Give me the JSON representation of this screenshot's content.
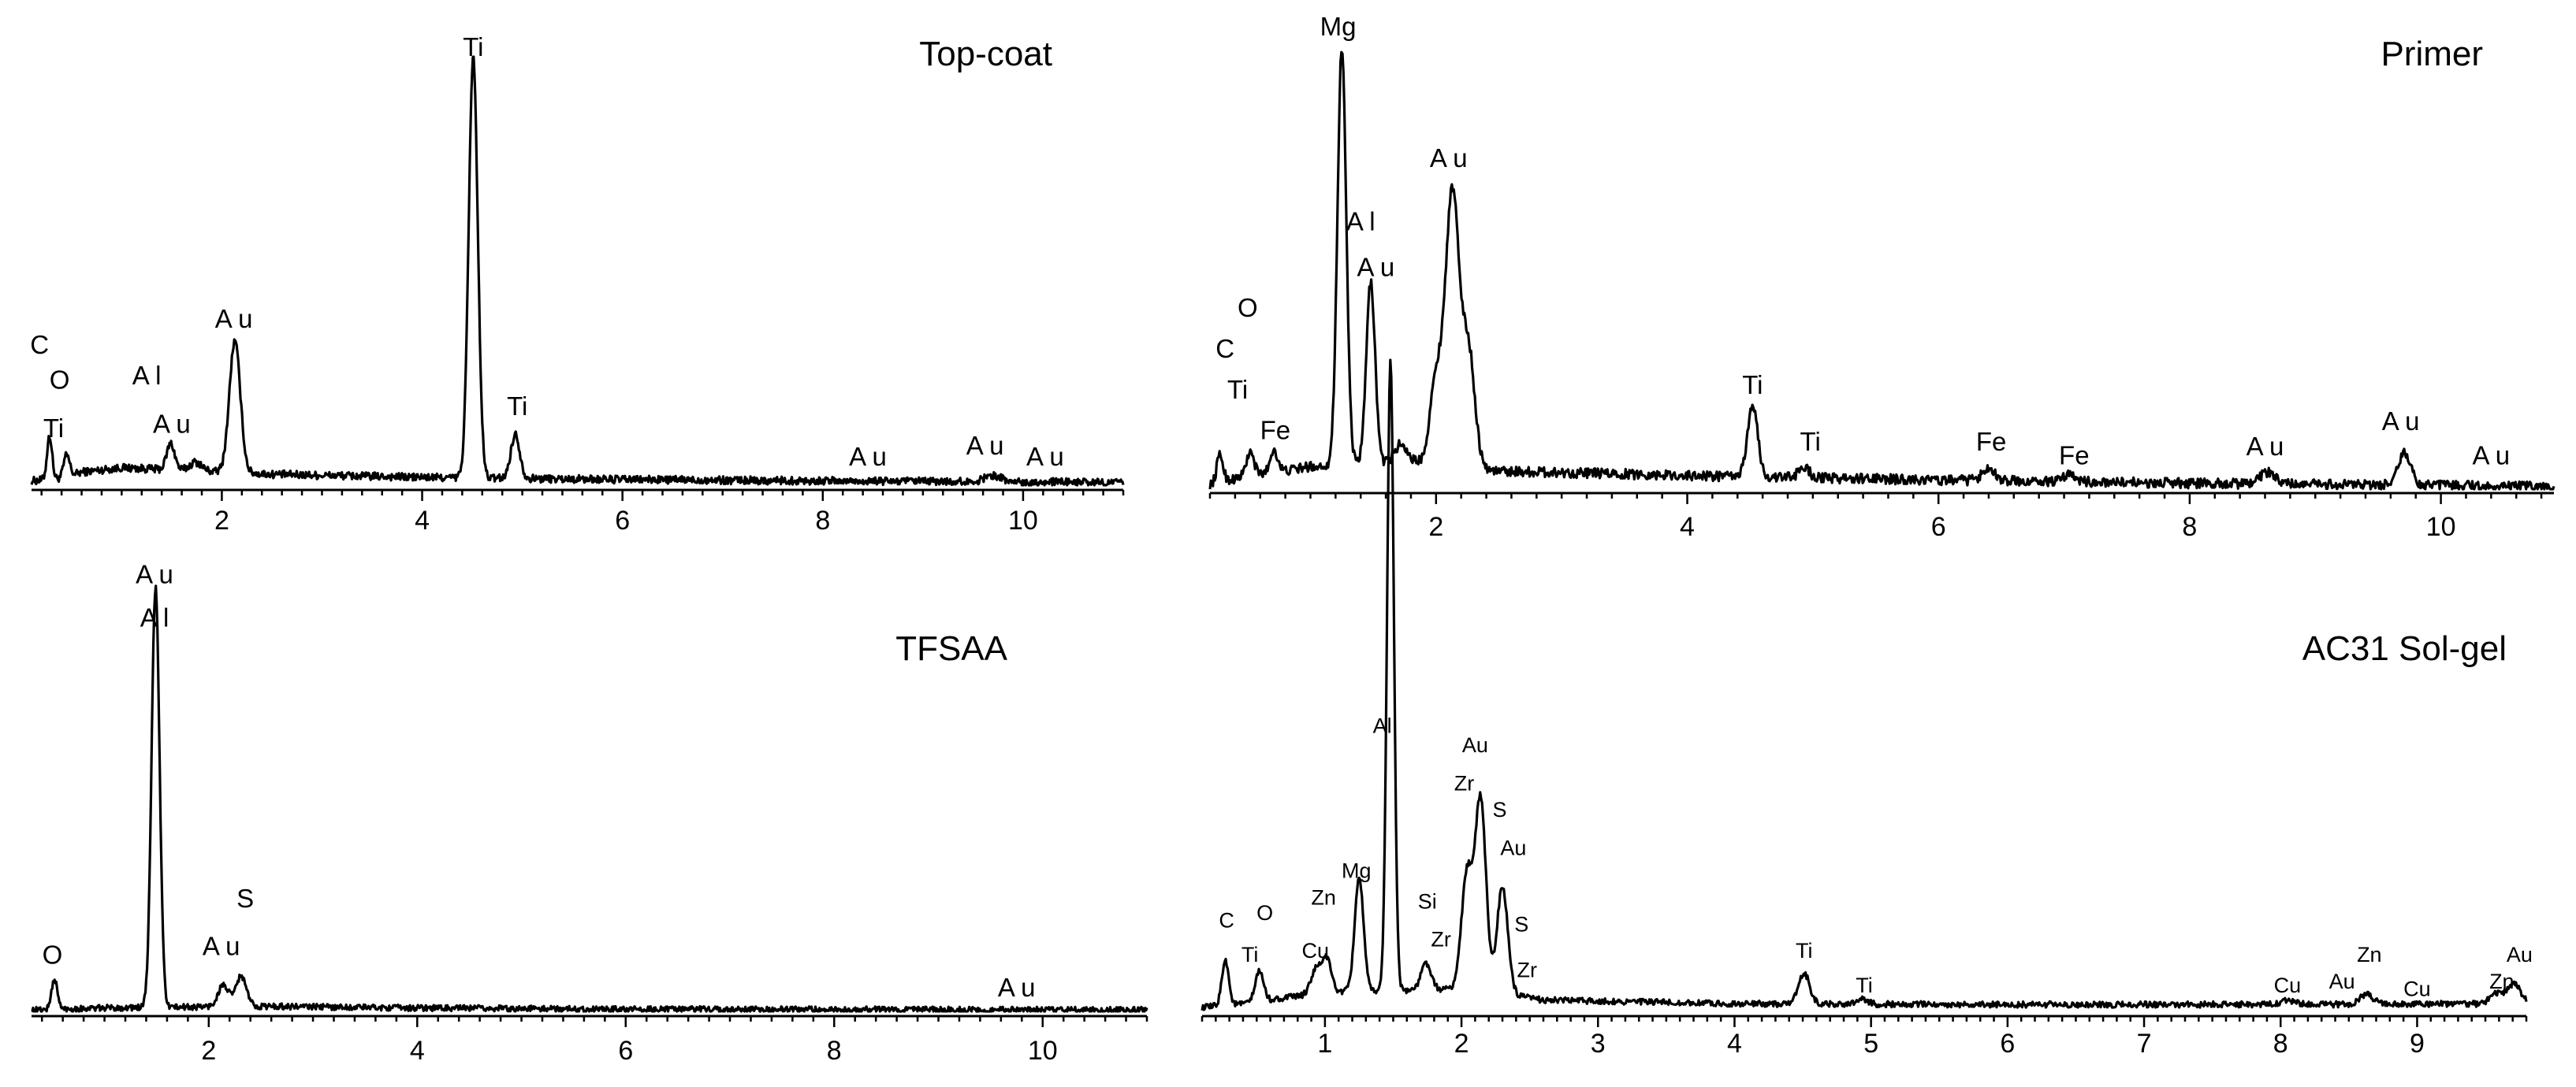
{
  "chart_data": [
    {
      "type": "line",
      "title": "Top-coat",
      "xlabel": "",
      "ylabel": "",
      "xlim": [
        0.1,
        11.0
      ],
      "ylim": [
        0,
        100
      ],
      "xticks": [
        2,
        4,
        6,
        8,
        10
      ],
      "tick_labels": [
        "2",
        "4",
        "6",
        "8",
        "10"
      ],
      "minor_step": 0.2,
      "noise": 0.9,
      "baseline": [
        [
          0.1,
          1
        ],
        [
          0.4,
          1.5
        ],
        [
          0.6,
          3
        ],
        [
          1.0,
          4
        ],
        [
          2.5,
          2.5
        ],
        [
          4.0,
          1.8
        ],
        [
          6.0,
          1.3
        ],
        [
          8.0,
          1.0
        ],
        [
          11.0,
          0.6
        ]
      ],
      "peaks": [
        {
          "x": 0.28,
          "h": 10,
          "w": 0.025
        },
        {
          "x": 0.45,
          "h": 5,
          "w": 0.03
        },
        {
          "x": 1.49,
          "h": 6,
          "w": 0.04
        },
        {
          "x": 1.74,
          "h": 2,
          "w": 0.06
        },
        {
          "x": 2.13,
          "h": 30,
          "w": 0.055
        },
        {
          "x": 4.51,
          "h": 96,
          "w": 0.045
        },
        {
          "x": 4.93,
          "h": 10,
          "w": 0.045
        },
        {
          "x": 9.7,
          "h": 1.5,
          "w": 0.08
        }
      ],
      "labels": [
        {
          "text": "C",
          "x": 0.18,
          "y": 30
        },
        {
          "text": "O",
          "x": 0.38,
          "y": 22
        },
        {
          "text": "Ti",
          "x": 0.32,
          "y": 11
        },
        {
          "text": "A l",
          "x": 1.25,
          "y": 23
        },
        {
          "text": "A u",
          "x": 1.5,
          "y": 12
        },
        {
          "text": "A u",
          "x": 2.12,
          "y": 36
        },
        {
          "text": "Ti",
          "x": 4.51,
          "y": 98
        },
        {
          "text": "Ti",
          "x": 4.95,
          "y": 16
        },
        {
          "text": "A u",
          "x": 8.45,
          "y": 4.5
        },
        {
          "text": "A u",
          "x": 9.62,
          "y": 7
        },
        {
          "text": "A u",
          "x": 10.22,
          "y": 4.5
        }
      ]
    },
    {
      "type": "line",
      "title": "Primer",
      "xlabel": "",
      "ylabel": "",
      "xlim": [
        0.2,
        10.9
      ],
      "ylim": [
        0,
        100
      ],
      "xticks": [
        2,
        4,
        6,
        8,
        10
      ],
      "tick_labels": [
        "2",
        "4",
        "6",
        "8",
        "10"
      ],
      "minor_step": 0.2,
      "noise": 1.1,
      "baseline": [
        [
          0.2,
          1
        ],
        [
          0.5,
          3
        ],
        [
          0.8,
          4
        ],
        [
          1.0,
          5
        ],
        [
          1.8,
          6
        ],
        [
          2.5,
          4
        ],
        [
          4.0,
          3
        ],
        [
          6.0,
          2
        ],
        [
          8.0,
          1.3
        ],
        [
          10.9,
          0.5
        ]
      ],
      "peaks": [
        {
          "x": 0.28,
          "h": 6,
          "w": 0.025
        },
        {
          "x": 0.52,
          "h": 5,
          "w": 0.03
        },
        {
          "x": 0.71,
          "h": 5,
          "w": 0.03
        },
        {
          "x": 1.25,
          "h": 92,
          "w": 0.035
        },
        {
          "x": 1.48,
          "h": 40,
          "w": 0.035
        },
        {
          "x": 1.72,
          "h": 4,
          "w": 0.05
        },
        {
          "x": 2.0,
          "h": 18,
          "w": 0.05
        },
        {
          "x": 2.13,
          "h": 60,
          "w": 0.055
        },
        {
          "x": 2.26,
          "h": 25,
          "w": 0.05
        },
        {
          "x": 4.52,
          "h": 16,
          "w": 0.04
        },
        {
          "x": 4.93,
          "h": 2.5,
          "w": 0.04
        },
        {
          "x": 6.4,
          "h": 3,
          "w": 0.05
        },
        {
          "x": 7.05,
          "h": 1.5,
          "w": 0.05
        },
        {
          "x": 8.62,
          "h": 2.5,
          "w": 0.06
        },
        {
          "x": 9.71,
          "h": 7,
          "w": 0.05
        }
      ],
      "labels": [
        {
          "text": "Mg",
          "x": 1.22,
          "y": 100
        },
        {
          "text": "A u",
          "x": 2.1,
          "y": 71
        },
        {
          "text": "A l",
          "x": 1.4,
          "y": 57
        },
        {
          "text": "A u",
          "x": 1.52,
          "y": 47
        },
        {
          "text": "O",
          "x": 0.5,
          "y": 38
        },
        {
          "text": "C",
          "x": 0.32,
          "y": 29
        },
        {
          "text": "Ti",
          "x": 0.42,
          "y": 20
        },
        {
          "text": "Fe",
          "x": 0.72,
          "y": 11
        },
        {
          "text": "Ti",
          "x": 4.52,
          "y": 21
        },
        {
          "text": "Ti",
          "x": 4.98,
          "y": 8.5
        },
        {
          "text": "Fe",
          "x": 6.42,
          "y": 8.5
        },
        {
          "text": "Fe",
          "x": 7.08,
          "y": 5.5
        },
        {
          "text": "A u",
          "x": 8.6,
          "y": 7.5
        },
        {
          "text": "A u",
          "x": 9.68,
          "y": 13
        },
        {
          "text": "A u",
          "x": 10.4,
          "y": 5.5
        }
      ]
    },
    {
      "type": "line",
      "title": "TFSAA",
      "xlabel": "",
      "ylabel": "",
      "xlim": [
        0.3,
        11.0
      ],
      "ylim": [
        0,
        100
      ],
      "xticks": [
        2,
        4,
        6,
        8,
        10
      ],
      "tick_labels": [
        "2",
        "4",
        "6",
        "8",
        "10"
      ],
      "minor_step": 0.2,
      "noise": 0.7,
      "baseline": [
        [
          0.3,
          0.3
        ],
        [
          1.0,
          0.8
        ],
        [
          2.5,
          1.2
        ],
        [
          4.0,
          0.8
        ],
        [
          6.0,
          0.5
        ],
        [
          11.0,
          0.3
        ]
      ],
      "peaks": [
        {
          "x": 0.52,
          "h": 7,
          "w": 0.028
        },
        {
          "x": 1.49,
          "h": 97,
          "w": 0.038
        },
        {
          "x": 2.14,
          "h": 5,
          "w": 0.05
        },
        {
          "x": 2.31,
          "h": 7,
          "w": 0.05
        }
      ],
      "labels": [
        {
          "text": "A u",
          "x": 1.48,
          "y": 99
        },
        {
          "text": "A l",
          "x": 1.48,
          "y": 89
        },
        {
          "text": "O",
          "x": 0.5,
          "y": 11
        },
        {
          "text": "S",
          "x": 2.35,
          "y": 24
        },
        {
          "text": "A u",
          "x": 2.12,
          "y": 13
        },
        {
          "text": "A u",
          "x": 9.75,
          "y": 3.5
        }
      ]
    },
    {
      "type": "line",
      "title": "AC31 Sol-gel",
      "xlabel": "",
      "ylabel": "",
      "xlim": [
        0.1,
        9.8
      ],
      "ylim": [
        0,
        100
      ],
      "xticks": [
        1,
        2,
        3,
        4,
        5,
        6,
        7,
        8,
        9
      ],
      "tick_labels": [
        "1",
        "2",
        "3",
        "4",
        "5",
        "6",
        "7",
        "8",
        "9"
      ],
      "minor_step": 0.1,
      "noise": 0.8,
      "baseline": [
        [
          0.1,
          1
        ],
        [
          0.4,
          2
        ],
        [
          1.0,
          5
        ],
        [
          2.0,
          6
        ],
        [
          2.6,
          3
        ],
        [
          4.0,
          2
        ],
        [
          6.0,
          1.8
        ],
        [
          8.0,
          1.8
        ],
        [
          9.8,
          2
        ]
      ],
      "peaks": [
        {
          "x": 0.27,
          "h": 12,
          "w": 0.025
        },
        {
          "x": 0.52,
          "h": 8,
          "w": 0.03
        },
        {
          "x": 0.93,
          "h": 6,
          "w": 0.035
        },
        {
          "x": 1.01,
          "h": 9,
          "w": 0.035
        },
        {
          "x": 1.25,
          "h": 30,
          "w": 0.032
        },
        {
          "x": 1.48,
          "h": 165,
          "w": 0.025
        },
        {
          "x": 1.74,
          "h": 7,
          "w": 0.035
        },
        {
          "x": 2.04,
          "h": 30,
          "w": 0.04
        },
        {
          "x": 2.14,
          "h": 50,
          "w": 0.04
        },
        {
          "x": 2.3,
          "h": 28,
          "w": 0.04
        },
        {
          "x": 4.51,
          "h": 8,
          "w": 0.04
        },
        {
          "x": 4.93,
          "h": 1.5,
          "w": 0.04
        },
        {
          "x": 8.05,
          "h": 1.2,
          "w": 0.05
        },
        {
          "x": 8.63,
          "h": 2.5,
          "w": 0.05
        },
        {
          "x": 9.58,
          "h": 2.5,
          "w": 0.05
        },
        {
          "x": 9.71,
          "h": 5,
          "w": 0.05
        }
      ],
      "labels": [
        {
          "text": "Al",
          "x": 1.42,
          "y": 73
        },
        {
          "text": "Au",
          "x": 2.1,
          "y": 68
        },
        {
          "text": "Zr",
          "x": 2.02,
          "y": 58
        },
        {
          "text": "S",
          "x": 2.28,
          "y": 51
        },
        {
          "text": "Au",
          "x": 2.38,
          "y": 41
        },
        {
          "text": "S",
          "x": 2.44,
          "y": 21
        },
        {
          "text": "Zr",
          "x": 2.48,
          "y": 9
        },
        {
          "text": "Si",
          "x": 1.75,
          "y": 27
        },
        {
          "text": "Zr",
          "x": 1.85,
          "y": 17
        },
        {
          "text": "Mg",
          "x": 1.23,
          "y": 35
        },
        {
          "text": "Zn",
          "x": 0.99,
          "y": 28
        },
        {
          "text": "O",
          "x": 0.56,
          "y": 24
        },
        {
          "text": "C",
          "x": 0.28,
          "y": 22
        },
        {
          "text": "Ti",
          "x": 0.45,
          "y": 13
        },
        {
          "text": "Cu",
          "x": 0.93,
          "y": 14
        },
        {
          "text": "Ti",
          "x": 4.51,
          "y": 14
        },
        {
          "text": "Ti",
          "x": 4.95,
          "y": 5
        },
        {
          "text": "Cu",
          "x": 8.05,
          "y": 5
        },
        {
          "text": "Au",
          "x": 8.45,
          "y": 6
        },
        {
          "text": "Zn",
          "x": 8.65,
          "y": 13
        },
        {
          "text": "Cu",
          "x": 9.0,
          "y": 4
        },
        {
          "text": "Au",
          "x": 9.75,
          "y": 13
        },
        {
          "text": "Zn",
          "x": 9.62,
          "y": 6
        }
      ]
    }
  ]
}
